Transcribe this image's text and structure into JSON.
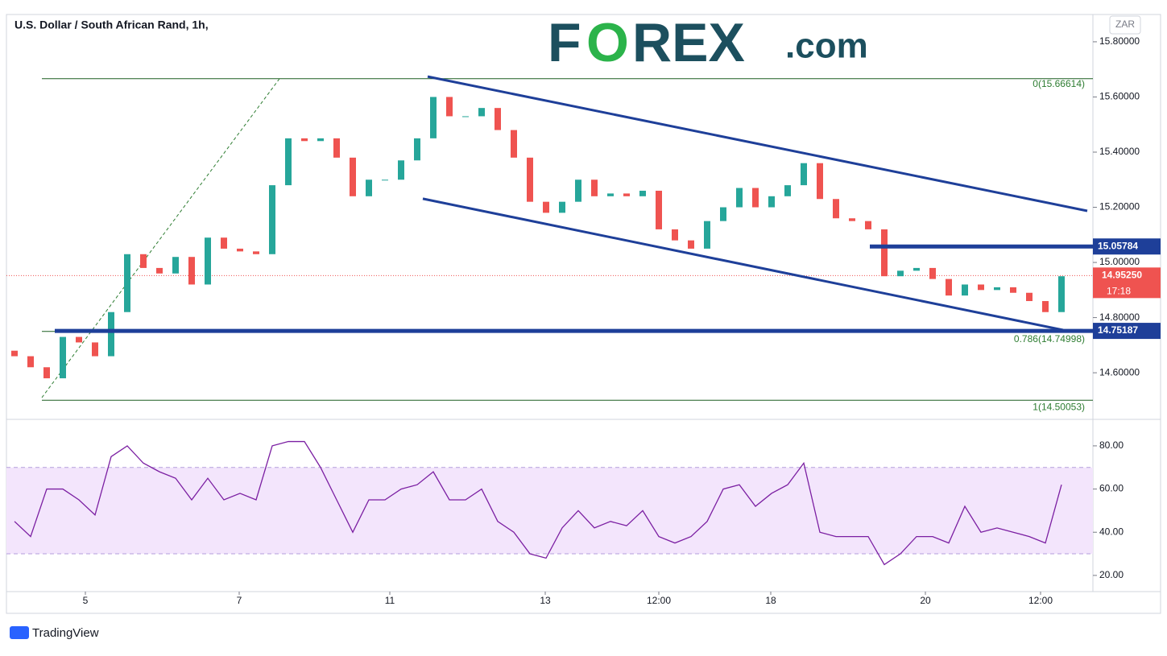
{
  "chart_data": {
    "type": "candlestick",
    "title": "U.S. Dollar / South African Rand, 1h,",
    "logo_parts": [
      "F",
      "O",
      "REX",
      ".com"
    ],
    "currency": "ZAR",
    "footer": "TradingView",
    "up_color": "#26a69a",
    "down_color": "#ef5350",
    "open": [
      14.68,
      14.66,
      14.62,
      14.58,
      14.73,
      14.71,
      14.66,
      14.82,
      15.03,
      14.98,
      14.96,
      15.02,
      14.92,
      15.09,
      15.05,
      15.04,
      15.03,
      15.28,
      15.45,
      15.44,
      15.45,
      15.38,
      15.24,
      15.3,
      15.3,
      15.37,
      15.45,
      15.6,
      15.53,
      15.53,
      15.56,
      15.48,
      15.38,
      15.22,
      15.18,
      15.22,
      15.3,
      15.24,
      15.25,
      15.24,
      15.26,
      15.12,
      15.08,
      15.05,
      15.15,
      15.2,
      15.27,
      15.2,
      15.24,
      15.28,
      15.36,
      15.23,
      15.16,
      15.15,
      15.12,
      14.95,
      14.97,
      14.98,
      14.94,
      14.88,
      14.92,
      14.9,
      14.91,
      14.89,
      14.86,
      14.82
    ],
    "close": [
      14.66,
      14.62,
      14.58,
      14.73,
      14.71,
      14.66,
      14.82,
      15.03,
      14.98,
      14.96,
      15.02,
      14.92,
      15.09,
      15.05,
      15.04,
      15.03,
      15.28,
      15.45,
      15.44,
      15.45,
      15.38,
      15.24,
      15.3,
      15.3,
      15.37,
      15.45,
      15.6,
      15.53,
      15.53,
      15.56,
      15.48,
      15.38,
      15.22,
      15.18,
      15.22,
      15.3,
      15.24,
      15.25,
      15.24,
      15.26,
      15.12,
      15.08,
      15.05,
      15.15,
      15.2,
      15.27,
      15.2,
      15.24,
      15.28,
      15.36,
      15.23,
      15.16,
      15.15,
      15.12,
      14.95,
      14.97,
      14.98,
      14.94,
      14.88,
      14.92,
      14.9,
      14.91,
      14.89,
      14.86,
      14.82,
      14.95
    ],
    "xlim": [
      -0.5,
      66.95
    ],
    "xticks": [
      {
        "value": 4.4,
        "label": "5"
      },
      {
        "value": 13.95,
        "label": "7"
      },
      {
        "value": 23.3,
        "label": "11"
      },
      {
        "value": 32.95,
        "label": "13"
      },
      {
        "value": 40,
        "label": "12:00"
      },
      {
        "value": 46.95,
        "label": "18"
      },
      {
        "value": 56.55,
        "label": "20"
      },
      {
        "value": 63.7,
        "label": "12:00"
      }
    ],
    "ylim": [
      14.434,
      15.899
    ],
    "yticks": [
      {
        "value": 14.6,
        "label": "14.60000"
      },
      {
        "value": 14.8,
        "label": "14.80000"
      },
      {
        "value": 15.0,
        "label": "15.00000"
      },
      {
        "value": 15.2,
        "label": "15.20000"
      },
      {
        "value": 15.4,
        "label": "15.40000"
      },
      {
        "value": 15.6,
        "label": "15.60000"
      },
      {
        "value": 15.8,
        "label": "15.80000"
      }
    ],
    "fib_levels": [
      {
        "label": "0(15.66614)",
        "value": 15.66614
      },
      {
        "label": "0.786(14.74998)",
        "value": 14.74998
      },
      {
        "label": "1(14.50053)",
        "value": 14.50053
      }
    ],
    "fib_trend": {
      "x": [
        1.7,
        16.5
      ],
      "y": [
        14.51,
        15.67
      ]
    },
    "channel": [
      {
        "x": [
          25.65,
          66.6
        ],
        "y": [
          15.674,
          15.187
        ]
      },
      {
        "x": [
          25.35,
          65.1
        ],
        "y": [
          15.231,
          14.755
        ]
      }
    ],
    "levels": [
      {
        "value": 15.05784,
        "label": "15.05784",
        "x_start": 53.1
      },
      {
        "value": 14.75187,
        "label": "14.75187",
        "x_start": 2.5
      }
    ],
    "last_price": {
      "value": 14.9525,
      "label": "14.95250",
      "countdown": "17:18"
    },
    "rsi": {
      "color": "#7b1fa2",
      "values": [
        45,
        38,
        60,
        60,
        55,
        48,
        75,
        80,
        72,
        68,
        65,
        55,
        65,
        55,
        58,
        55,
        80,
        82,
        82,
        70,
        55,
        40,
        55,
        55,
        60,
        62,
        68,
        55,
        55,
        60,
        45,
        40,
        30,
        28,
        42,
        50,
        42,
        45,
        43,
        50,
        38,
        35,
        38,
        45,
        60,
        62,
        52,
        58,
        62,
        72,
        40,
        38,
        38,
        38,
        25,
        30,
        38,
        38,
        35,
        52,
        40,
        42,
        40,
        38,
        35,
        62
      ],
      "ylim": [
        12.5,
        91.9
      ],
      "band": [
        30,
        70
      ],
      "yticks": [
        {
          "value": 20,
          "label": "20.00"
        },
        {
          "value": 40,
          "label": "40.00"
        },
        {
          "value": 60,
          "label": "60.00"
        },
        {
          "value": 80,
          "label": "80.00"
        }
      ]
    }
  }
}
